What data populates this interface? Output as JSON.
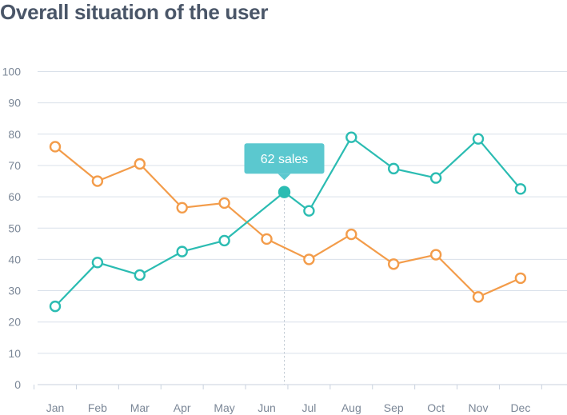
{
  "chart_data": {
    "type": "line",
    "title": "Overall situation of the user",
    "xlabel": "",
    "ylabel": "",
    "categories": [
      "Jan",
      "Feb",
      "Mar",
      "Apr",
      "May",
      "Jun",
      "Jul",
      "Aug",
      "Sep",
      "Oct",
      "Nov",
      "Dec"
    ],
    "ylim": [
      0,
      100
    ],
    "yticks": [
      0,
      10,
      20,
      30,
      40,
      50,
      60,
      70,
      80,
      90,
      100
    ],
    "grid": true,
    "series": [
      {
        "color": "#f39c4a",
        "x": [
          1,
          2,
          3,
          4,
          5,
          6,
          7,
          8,
          9,
          10,
          11,
          12
        ],
        "values": [
          76,
          65,
          70.5,
          56.5,
          58,
          46.5,
          40,
          48,
          38.5,
          41.5,
          28,
          34
        ]
      },
      {
        "color": "#2bbcb2",
        "x": [
          1,
          2,
          3,
          4,
          5,
          6,
          7,
          8,
          9,
          10,
          11,
          12
        ],
        "values": [
          25,
          39,
          35,
          42.5,
          46,
          61.5,
          55.5,
          79,
          69,
          66,
          78.5,
          62.5
        ]
      }
    ],
    "annotations": [
      {
        "text": "62 sales",
        "series_index": 1,
        "point_index": 5,
        "color": "#5bc8cf"
      }
    ]
  }
}
